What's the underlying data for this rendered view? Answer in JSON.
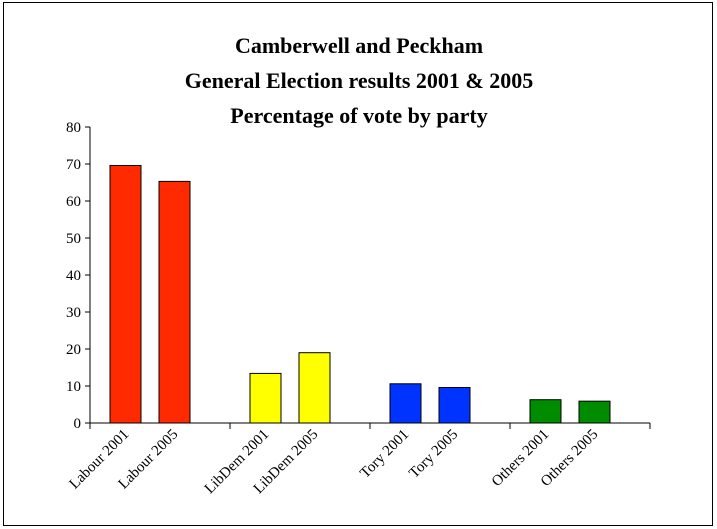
{
  "chart_data": {
    "type": "bar",
    "title_lines": [
      "Camberwell and Peckham",
      "General Election results 2001 & 2005",
      "Percentage of vote by party"
    ],
    "categories": [
      "Labour 2001",
      "Labour 2005",
      "LibDem 2001",
      "LibDem 2005",
      "Tory 2001",
      "Tory 2005",
      "Others 2001",
      "Others 2005"
    ],
    "values": [
      69.6,
      65.3,
      13.4,
      19.0,
      10.6,
      9.6,
      6.3,
      5.9
    ],
    "colors": [
      "#ff2a00",
      "#ff2a00",
      "#ffff00",
      "#ffff00",
      "#0033ff",
      "#0033ff",
      "#008c00",
      "#008c00"
    ],
    "ylim": [
      0,
      80
    ],
    "yticks": [
      0,
      10,
      20,
      30,
      40,
      50,
      60,
      70,
      80
    ],
    "grid": false,
    "legend": "none",
    "xlabel": "",
    "ylabel": ""
  }
}
